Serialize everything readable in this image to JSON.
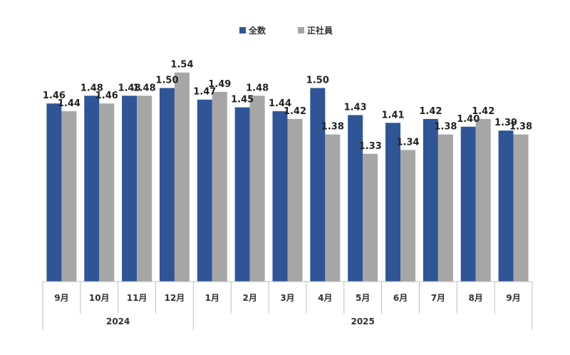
{
  "chart_data": {
    "type": "bar",
    "categories": [
      "9月",
      "10月",
      "11月",
      "12月",
      "1月",
      "2月",
      "3月",
      "4月",
      "5月",
      "6月",
      "7月",
      "8月",
      "9月"
    ],
    "year_groups": [
      {
        "label": "2024",
        "count": 4
      },
      {
        "label": "2025",
        "count": 9
      }
    ],
    "series": [
      {
        "name": "全数",
        "color": "#2F5597",
        "values": [
          1.46,
          1.48,
          1.48,
          1.5,
          1.47,
          1.45,
          1.44,
          1.5,
          1.43,
          1.41,
          1.42,
          1.4,
          1.39
        ]
      },
      {
        "name": "正社員",
        "color": "#A6A6A6",
        "values": [
          1.44,
          1.46,
          1.48,
          1.54,
          1.49,
          1.48,
          1.42,
          1.38,
          1.33,
          1.34,
          1.38,
          1.42,
          1.38
        ]
      }
    ],
    "ylim": [
      1.0,
      1.58
    ],
    "grid": false,
    "legend_position": "top-center"
  }
}
